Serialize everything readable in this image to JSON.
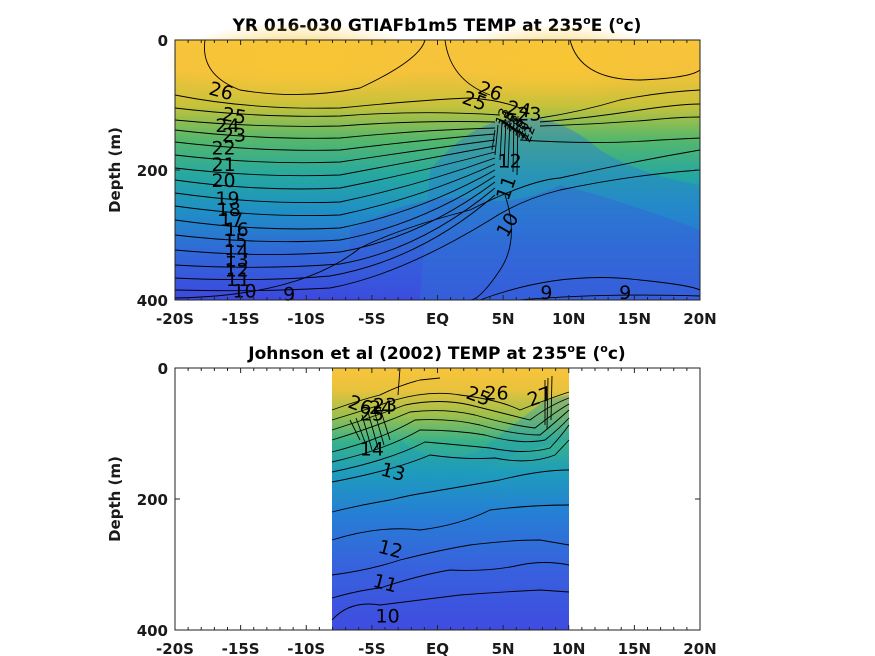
{
  "chart_data": [
    {
      "type": "contour",
      "title": {
        "text": "YR 016-030 GTIAFb1m5 TEMP at 235",
        "sup": "o",
        "tail": "E (",
        "sup2": "o",
        "end": "c)"
      },
      "xlabel": "",
      "ylabel": "Depth (m)",
      "x_ticks": [
        "-20S",
        "-15S",
        "-10S",
        "-5S",
        "EQ",
        "5N",
        "10N",
        "15N",
        "20N"
      ],
      "x_values": [
        -20,
        -15,
        -10,
        -5,
        0,
        5,
        10,
        15,
        20
      ],
      "y_ticks": [
        "0",
        "200",
        "400"
      ],
      "xlim": [
        -20,
        20
      ],
      "ylim": [
        400,
        0
      ],
      "data_extent_x": [
        -20,
        20
      ],
      "contour_labels": [
        {
          "text": "26",
          "x": -16.5,
          "y": 80,
          "rot": 15
        },
        {
          "text": "25",
          "x": -15.5,
          "y": 118,
          "rot": 10
        },
        {
          "text": "24",
          "x": -16.0,
          "y": 133,
          "rot": 0
        },
        {
          "text": "23",
          "x": -15.5,
          "y": 148,
          "rot": 0
        },
        {
          "text": "22",
          "x": -16.3,
          "y": 168,
          "rot": 0
        },
        {
          "text": "21",
          "x": -16.3,
          "y": 193,
          "rot": 0
        },
        {
          "text": "20",
          "x": -16.3,
          "y": 218,
          "rot": 0
        },
        {
          "text": "19",
          "x": -16.0,
          "y": 245,
          "rot": 0
        },
        {
          "text": "18",
          "x": -15.9,
          "y": 262,
          "rot": 0
        },
        {
          "text": "17",
          "x": -15.7,
          "y": 278,
          "rot": 0
        },
        {
          "text": "16",
          "x": -15.3,
          "y": 293,
          "rot": 0
        },
        {
          "text": "15",
          "x": -15.4,
          "y": 310,
          "rot": 0
        },
        {
          "text": "14",
          "x": -15.3,
          "y": 326,
          "rot": 0
        },
        {
          "text": "13",
          "x": -15.3,
          "y": 340,
          "rot": 0
        },
        {
          "text": "12",
          "x": -15.3,
          "y": 355,
          "rot": 0
        },
        {
          "text": "11",
          "x": -15.2,
          "y": 370,
          "rot": 0
        },
        {
          "text": "10",
          "x": -14.7,
          "y": 388,
          "rot": 0
        },
        {
          "text": "9",
          "x": -11.3,
          "y": 392,
          "rot": 0
        },
        {
          "text": "26",
          "x": 4.0,
          "y": 80,
          "rot": 20
        },
        {
          "text": "25",
          "x": 2.8,
          "y": 95,
          "rot": 20
        },
        {
          "text": "24",
          "x": 6.2,
          "y": 108,
          "rot": 10
        },
        {
          "text": "23",
          "x": 7.0,
          "y": 115,
          "rot": 0
        },
        {
          "text": "11",
          "x": 5.3,
          "y": 228,
          "rot": -70
        },
        {
          "text": "12",
          "x": 5.5,
          "y": 188,
          "rot": 0
        },
        {
          "text": "10",
          "x": 5.4,
          "y": 285,
          "rot": -60
        },
        {
          "text": "9",
          "x": 8.3,
          "y": 390,
          "rot": 0
        },
        {
          "text": "9",
          "x": 14.3,
          "y": 390,
          "rot": 0
        }
      ],
      "dense_labels": [
        "13",
        "14",
        "15",
        "16",
        "17",
        "18",
        "19",
        "20",
        "21",
        "22"
      ]
    },
    {
      "type": "contour",
      "title": {
        "text": "Johnson et al (2002) TEMP at 235",
        "sup": "o",
        "tail": "E (",
        "sup2": "o",
        "end": "c)"
      },
      "xlabel": "",
      "ylabel": "Depth (m)",
      "x_ticks": [
        "-20S",
        "-15S",
        "-10S",
        "-5S",
        "EQ",
        "5N",
        "10N",
        "15N",
        "20N"
      ],
      "x_values": [
        -20,
        -15,
        -10,
        -5,
        0,
        5,
        10,
        15,
        20
      ],
      "y_ticks": [
        "0",
        "200",
        "400"
      ],
      "xlim": [
        -20,
        20
      ],
      "ylim": [
        400,
        0
      ],
      "data_extent_x": [
        -8,
        10
      ],
      "contour_labels": [
        {
          "text": "26",
          "x": -5.9,
          "y": 58,
          "rot": 20
        },
        {
          "text": "25",
          "x": -5.0,
          "y": 72,
          "rot": 0
        },
        {
          "text": "24",
          "x": -4.3,
          "y": 62,
          "rot": 0
        },
        {
          "text": "23",
          "x": -4.0,
          "y": 58,
          "rot": 0
        },
        {
          "text": "14",
          "x": -5.0,
          "y": 125,
          "rot": 0
        },
        {
          "text": "13",
          "x": -3.4,
          "y": 160,
          "rot": 15
        },
        {
          "text": "12",
          "x": -3.6,
          "y": 278,
          "rot": 15
        },
        {
          "text": "11",
          "x": -4.0,
          "y": 330,
          "rot": 15
        },
        {
          "text": "10",
          "x": -3.8,
          "y": 380,
          "rot": 0
        },
        {
          "text": "25",
          "x": 3.1,
          "y": 44,
          "rot": 20
        },
        {
          "text": "26",
          "x": 4.5,
          "y": 40,
          "rot": 0
        },
        {
          "text": "27",
          "x": 7.8,
          "y": 45,
          "rot": -20
        }
      ]
    }
  ]
}
